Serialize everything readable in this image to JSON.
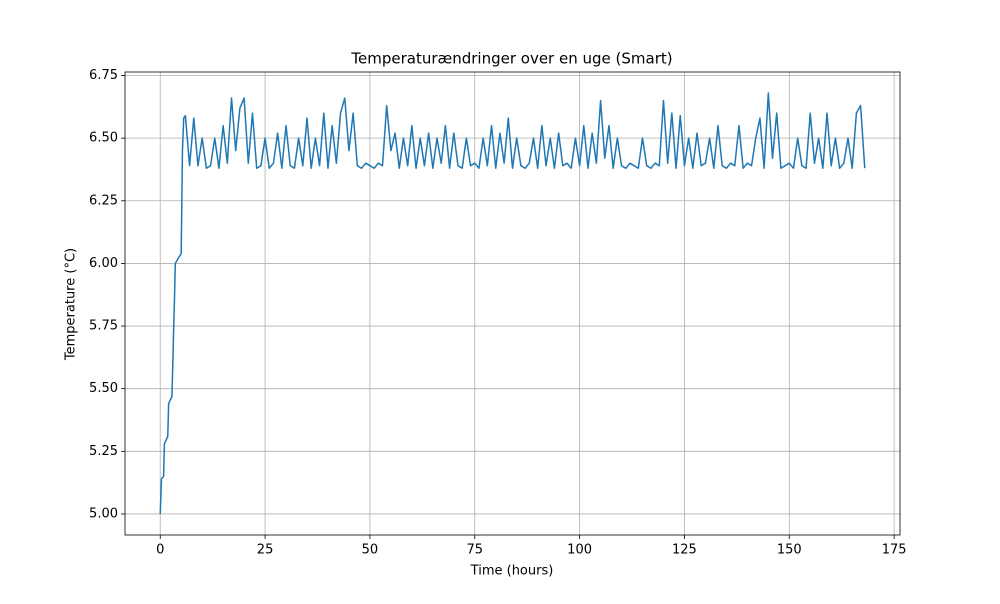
{
  "chart_data": {
    "type": "line",
    "title": "Temperaturændringer over en uge (Smart)",
    "xlabel": "Time (hours)",
    "ylabel": "Temperature (°C)",
    "color": "#1f77b4",
    "grid": true,
    "xlim": [
      -8.4,
      176.4
    ],
    "ylim": [
      4.916,
      6.764
    ],
    "xticks": [
      0,
      25,
      50,
      75,
      100,
      125,
      150,
      175
    ],
    "yticks": [
      {
        "value": 5.0,
        "label": "5.00"
      },
      {
        "value": 5.25,
        "label": "5.25"
      },
      {
        "value": 5.5,
        "label": "5.50"
      },
      {
        "value": 5.75,
        "label": "5.75"
      },
      {
        "value": 6.0,
        "label": "6.00"
      },
      {
        "value": 6.25,
        "label": "6.25"
      },
      {
        "value": 6.5,
        "label": "6.50"
      },
      {
        "value": 6.75,
        "label": "6.75"
      }
    ],
    "x": [
      0,
      0.3,
      0.8,
      1,
      1.8,
      2,
      2.8,
      3,
      3.2,
      3.4,
      3.6,
      5,
      5.3,
      5.6,
      6,
      7,
      8,
      9,
      10,
      11,
      12,
      13,
      14,
      15,
      16,
      17,
      18,
      19,
      20,
      21,
      22,
      23,
      24,
      25,
      26,
      27,
      28,
      29,
      30,
      31,
      32,
      33,
      34,
      35,
      36,
      37,
      38,
      39,
      40,
      41,
      42,
      43,
      44,
      45,
      46,
      47,
      48,
      49,
      50,
      51,
      52,
      53,
      54,
      55,
      56,
      57,
      58,
      59,
      60,
      61,
      62,
      63,
      64,
      65,
      66,
      67,
      68,
      69,
      70,
      71,
      72,
      73,
      74,
      75,
      76,
      77,
      78,
      79,
      80,
      81,
      82,
      83,
      84,
      85,
      86,
      87,
      88,
      89,
      90,
      91,
      92,
      93,
      94,
      95,
      96,
      97,
      98,
      99,
      100,
      101,
      102,
      103,
      104,
      105,
      106,
      107,
      108,
      109,
      110,
      111,
      112,
      113,
      114,
      115,
      116,
      117,
      118,
      119,
      120,
      121,
      122,
      123,
      124,
      125,
      126,
      127,
      128,
      129,
      130,
      131,
      132,
      133,
      134,
      135,
      136,
      137,
      138,
      139,
      140,
      141,
      142,
      143,
      144,
      145,
      146,
      147,
      148,
      149,
      150,
      151,
      152,
      153,
      154,
      155,
      156,
      157,
      158,
      159,
      160,
      161,
      162,
      163,
      164,
      165,
      166,
      167,
      168
    ],
    "values": [
      5.0,
      5.14,
      5.15,
      5.28,
      5.31,
      5.44,
      5.47,
      5.6,
      5.74,
      5.86,
      6.0,
      6.04,
      6.45,
      6.58,
      6.59,
      6.39,
      6.58,
      6.39,
      6.5,
      6.38,
      6.39,
      6.5,
      6.38,
      6.55,
      6.4,
      6.66,
      6.45,
      6.62,
      6.66,
      6.4,
      6.6,
      6.38,
      6.39,
      6.5,
      6.38,
      6.4,
      6.52,
      6.38,
      6.55,
      6.39,
      6.38,
      6.5,
      6.39,
      6.58,
      6.38,
      6.5,
      6.39,
      6.6,
      6.38,
      6.55,
      6.4,
      6.6,
      6.66,
      6.45,
      6.6,
      6.39,
      6.38,
      6.4,
      6.39,
      6.38,
      6.4,
      6.39,
      6.63,
      6.45,
      6.52,
      6.38,
      6.5,
      6.39,
      6.55,
      6.38,
      6.5,
      6.39,
      6.52,
      6.38,
      6.5,
      6.4,
      6.55,
      6.38,
      6.52,
      6.39,
      6.38,
      6.5,
      6.39,
      6.4,
      6.38,
      6.5,
      6.39,
      6.55,
      6.38,
      6.52,
      6.4,
      6.58,
      6.38,
      6.5,
      6.39,
      6.38,
      6.4,
      6.5,
      6.38,
      6.55,
      6.39,
      6.5,
      6.38,
      6.52,
      6.39,
      6.4,
      6.38,
      6.5,
      6.39,
      6.55,
      6.38,
      6.52,
      6.4,
      6.65,
      6.42,
      6.55,
      6.38,
      6.5,
      6.39,
      6.38,
      6.4,
      6.39,
      6.38,
      6.5,
      6.39,
      6.38,
      6.4,
      6.39,
      6.65,
      6.4,
      6.6,
      6.38,
      6.59,
      6.39,
      6.5,
      6.38,
      6.52,
      6.39,
      6.4,
      6.5,
      6.38,
      6.55,
      6.39,
      6.38,
      6.4,
      6.39,
      6.55,
      6.38,
      6.4,
      6.39,
      6.5,
      6.58,
      6.38,
      6.68,
      6.42,
      6.6,
      6.38,
      6.39,
      6.4,
      6.38,
      6.5,
      6.39,
      6.38,
      6.6,
      6.4,
      6.5,
      6.38,
      6.6,
      6.39,
      6.5,
      6.38,
      6.4,
      6.5,
      6.38,
      6.6,
      6.63,
      6.38
    ]
  }
}
